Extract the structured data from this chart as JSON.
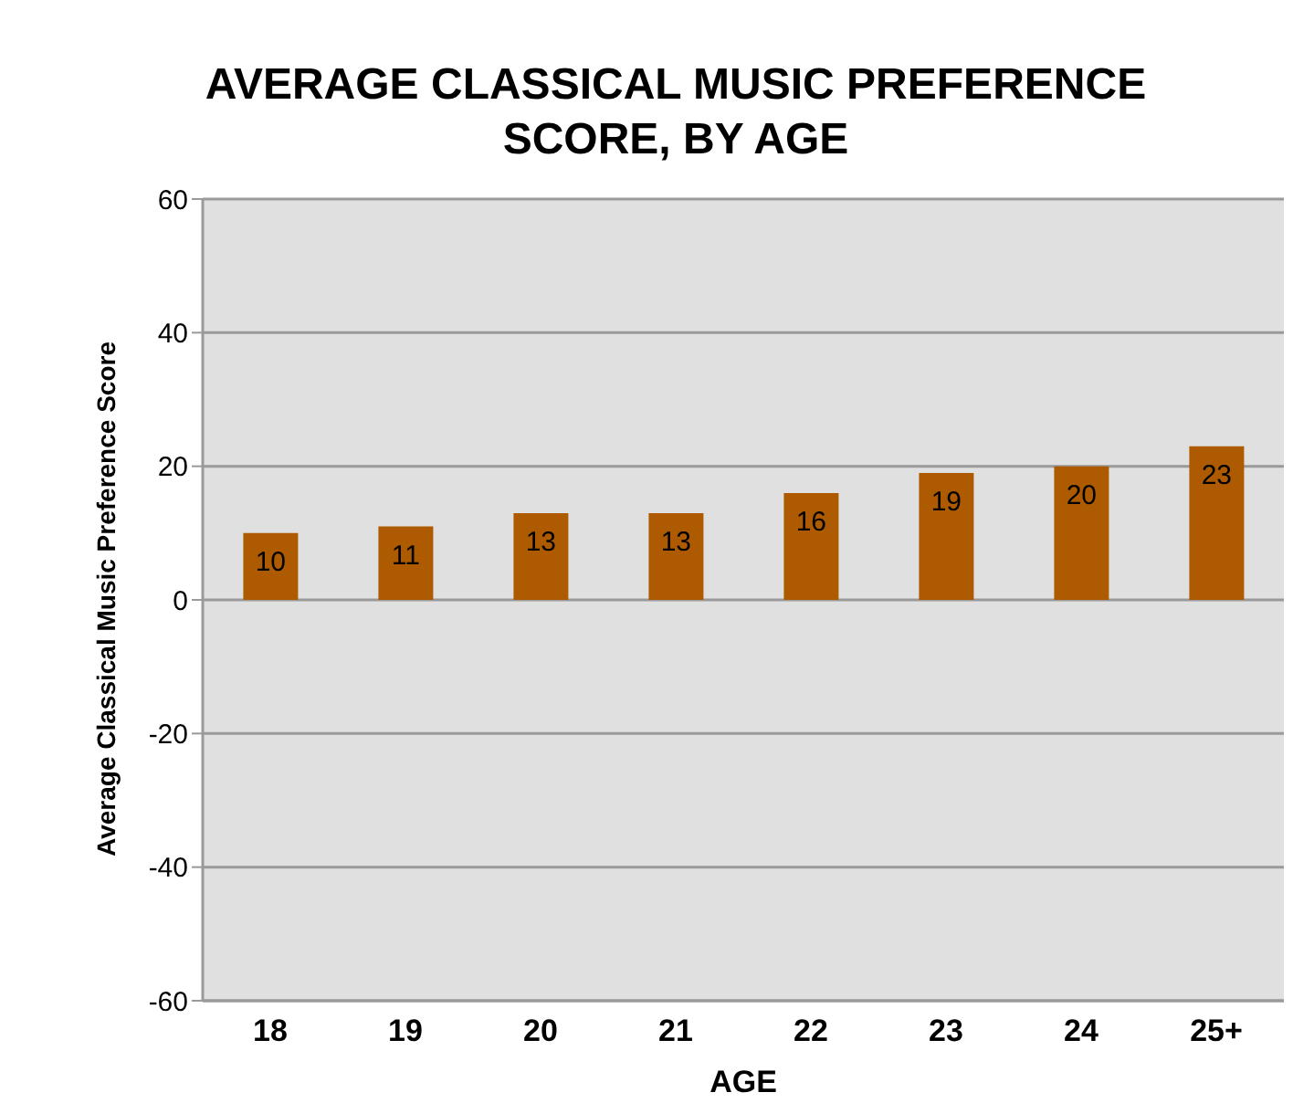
{
  "chart_data": {
    "type": "bar",
    "title": "AVERAGE CLASSICAL MUSIC PREFERENCE SCORE, BY AGE",
    "xlabel": "AGE",
    "ylabel": "Average Classical Music Preference Score",
    "categories": [
      "18",
      "19",
      "20",
      "21",
      "22",
      "23",
      "24",
      "25+"
    ],
    "values": [
      10,
      11,
      13,
      13,
      16,
      19,
      20,
      23
    ],
    "color": "#ad5a00",
    "ylim": [
      -60,
      60
    ],
    "yticks": [
      -60,
      -40,
      -20,
      0,
      20,
      40,
      60
    ],
    "grid": "y",
    "data_labels": true
  }
}
